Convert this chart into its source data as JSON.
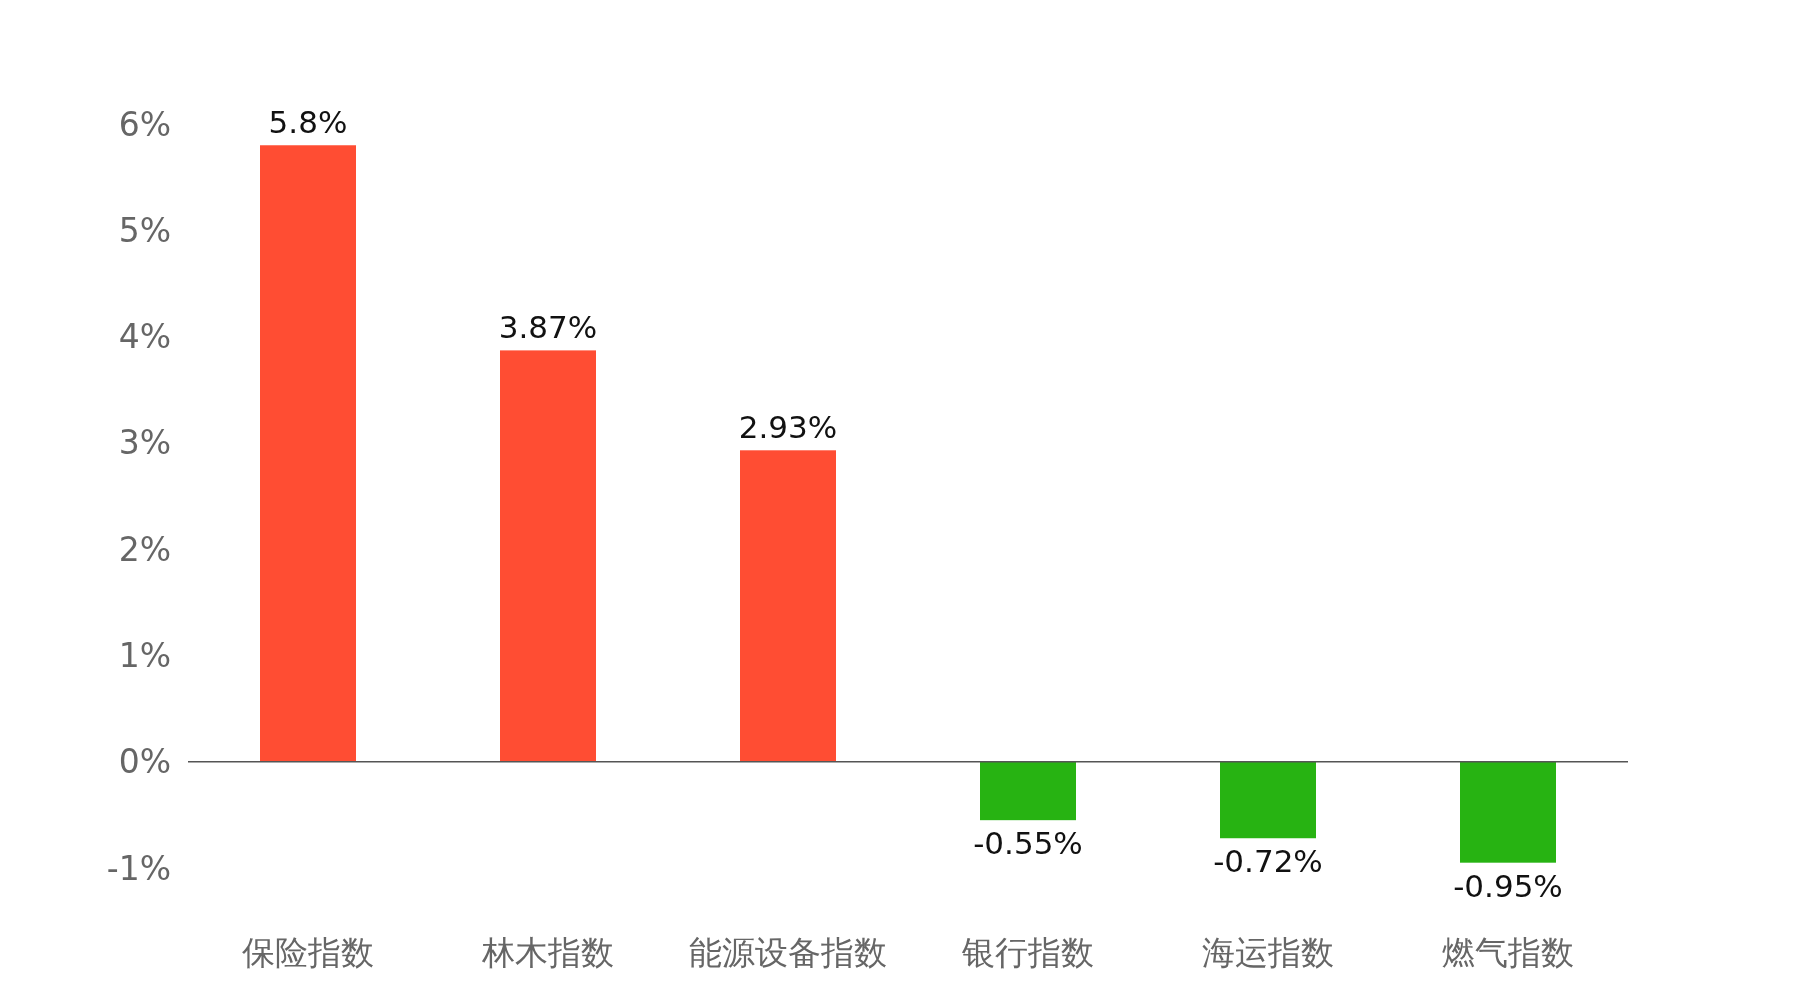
{
  "chart_data": {
    "type": "bar",
    "categories": [
      "保险指数",
      "林木指数",
      "能源设备指数",
      "银行指数",
      "海运指数",
      "燃气指数"
    ],
    "values": [
      5.8,
      3.87,
      2.93,
      -0.55,
      -0.72,
      -0.95
    ],
    "colors": [
      "#ff4d33",
      "#ff4d33",
      "#ff4d33",
      "#27b312",
      "#27b312",
      "#27b312"
    ],
    "value_labels": [
      "5.8%",
      "3.87%",
      "2.93%",
      "-0.55%",
      "-0.72%",
      "-0.95%"
    ],
    "ylim": [
      -1,
      6
    ],
    "yticks": [
      {
        "value": -1,
        "label": "-1%"
      },
      {
        "value": 0,
        "label": "0%"
      },
      {
        "value": 1,
        "label": "1%"
      },
      {
        "value": 2,
        "label": "2%"
      },
      {
        "value": 3,
        "label": "3%"
      },
      {
        "value": 4,
        "label": "4%"
      },
      {
        "value": 5,
        "label": "5%"
      },
      {
        "value": 6,
        "label": "6%"
      }
    ],
    "orientation": "vertical"
  }
}
